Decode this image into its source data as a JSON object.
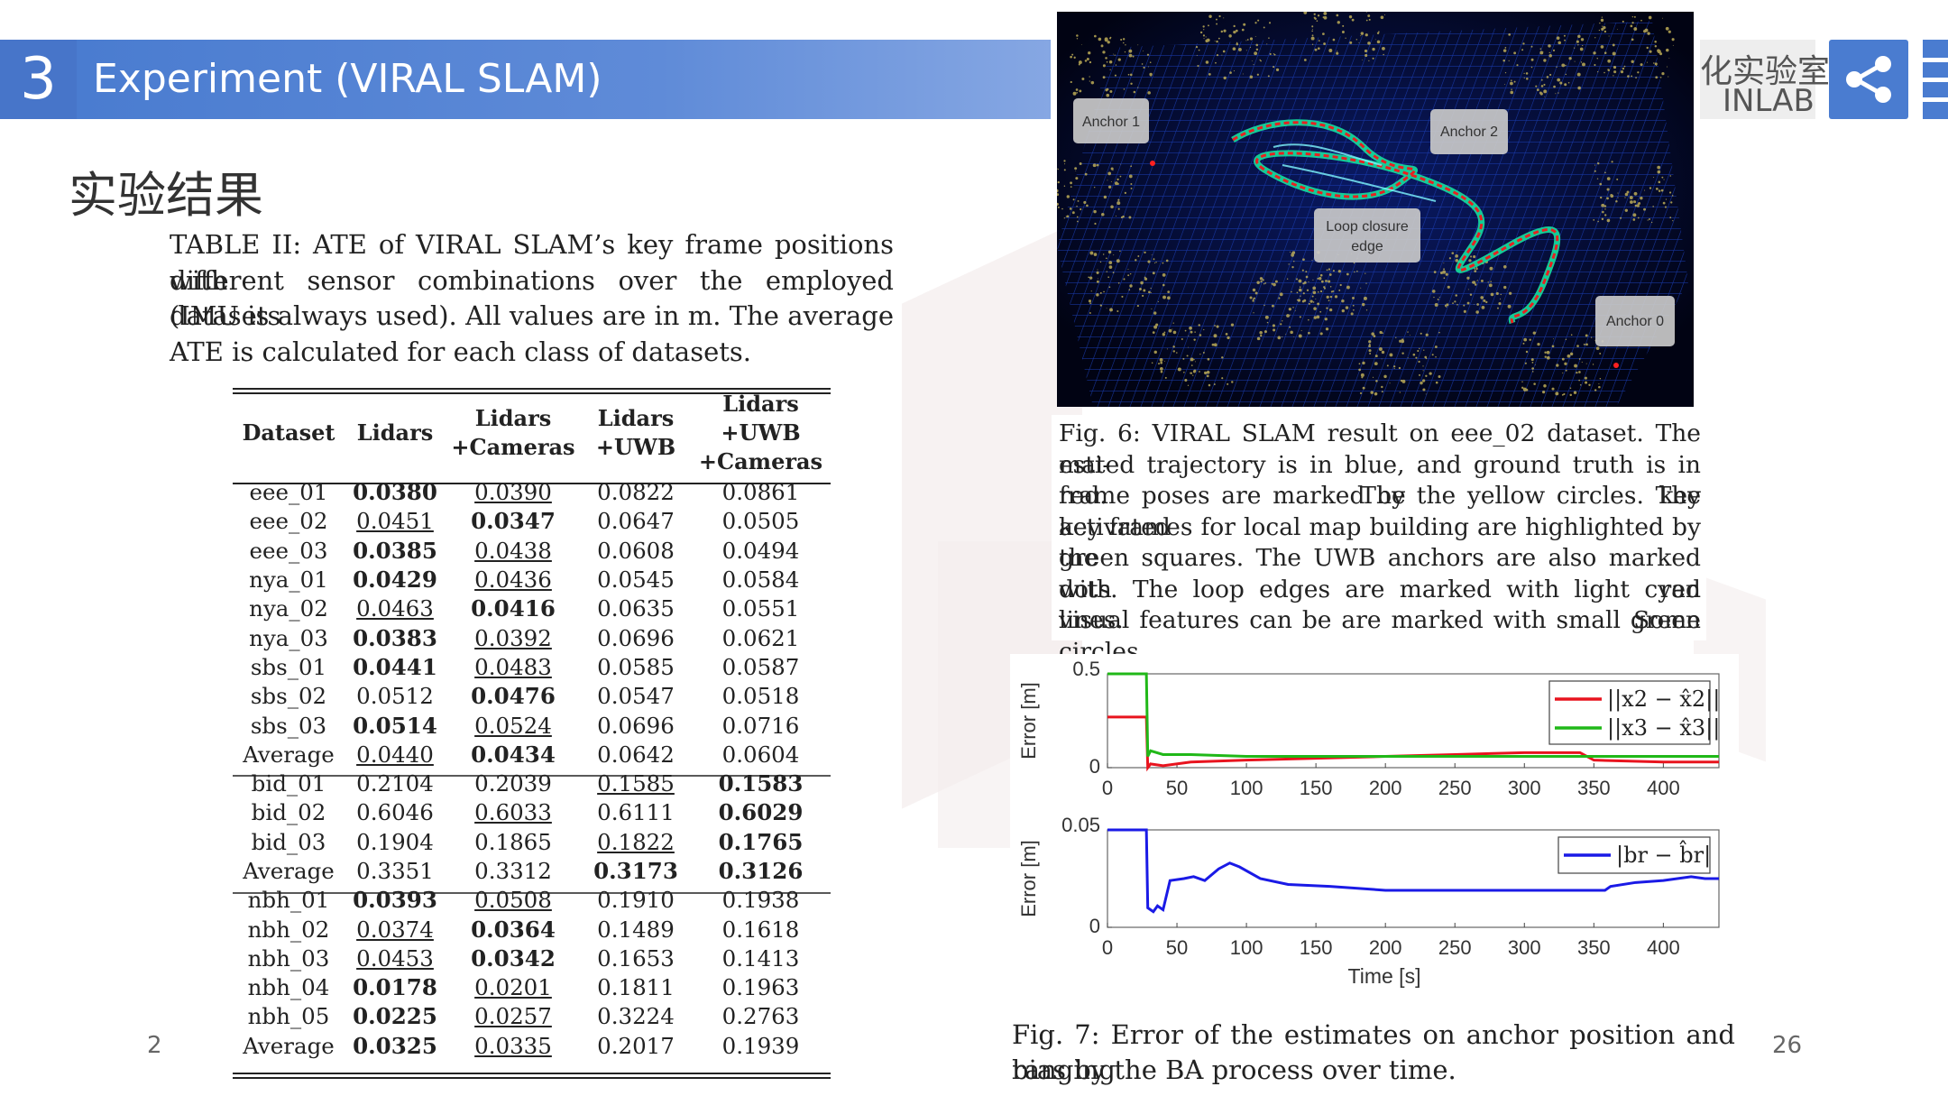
{
  "header": {
    "section_number": "3",
    "title": "Experiment (VIRAL SLAM)",
    "lab_name_cn": "化实验室",
    "lab_name_en": "INLAB",
    "share_icon": "share-icon"
  },
  "subtitle": "实验结果",
  "table_caption_lines": [
    "TABLE II: ATE of VIRAL SLAM’s key frame positions with",
    "different sensor combinations over the employed datasets",
    "(IMU is always used). All values are in m. The average",
    "ATE is calculated for each class of datasets."
  ],
  "table": {
    "headers": [
      "Dataset",
      "Lidars",
      "Lidars +Cameras",
      "Lidars +UWB",
      "Lidars +UWB +Cameras"
    ],
    "rows": [
      {
        "cells": [
          "eee_01",
          "0.0380",
          "0.0390",
          "0.0822",
          "0.0861"
        ],
        "bold": [
          1
        ],
        "underline": [
          2
        ]
      },
      {
        "cells": [
          "eee_02",
          "0.0451",
          "0.0347",
          "0.0647",
          "0.0505"
        ],
        "bold": [
          2
        ],
        "underline": [
          1
        ]
      },
      {
        "cells": [
          "eee_03",
          "0.0385",
          "0.0438",
          "0.0608",
          "0.0494"
        ],
        "bold": [
          1
        ],
        "underline": [
          2
        ]
      },
      {
        "cells": [
          "nya_01",
          "0.0429",
          "0.0436",
          "0.0545",
          "0.0584"
        ],
        "bold": [
          1
        ],
        "underline": [
          2
        ]
      },
      {
        "cells": [
          "nya_02",
          "0.0463",
          "0.0416",
          "0.0635",
          "0.0551"
        ],
        "bold": [
          2
        ],
        "underline": [
          1
        ]
      },
      {
        "cells": [
          "nya_03",
          "0.0383",
          "0.0392",
          "0.0696",
          "0.0621"
        ],
        "bold": [
          1
        ],
        "underline": [
          2
        ]
      },
      {
        "cells": [
          "sbs_01",
          "0.0441",
          "0.0483",
          "0.0585",
          "0.0587"
        ],
        "bold": [
          1
        ],
        "underline": [
          2
        ]
      },
      {
        "cells": [
          "sbs_02",
          "0.0512",
          "0.0476",
          "0.0547",
          "0.0518"
        ],
        "bold": [
          2
        ],
        "underline": []
      },
      {
        "cells": [
          "sbs_03",
          "0.0514",
          "0.0524",
          "0.0696",
          "0.0716"
        ],
        "bold": [
          1
        ],
        "underline": [
          2
        ]
      },
      {
        "cells": [
          "Average",
          "0.0440",
          "0.0434",
          "0.0642",
          "0.0604"
        ],
        "bold": [
          2
        ],
        "underline": [
          1
        ],
        "group_end": true
      },
      {
        "cells": [
          "bid_01",
          "0.2104",
          "0.2039",
          "0.1585",
          "0.1583"
        ],
        "bold": [
          4
        ],
        "underline": [
          3
        ]
      },
      {
        "cells": [
          "bid_02",
          "0.6046",
          "0.6033",
          "0.6111",
          "0.6029"
        ],
        "bold": [
          4
        ],
        "underline": [
          2
        ]
      },
      {
        "cells": [
          "bid_03",
          "0.1904",
          "0.1865",
          "0.1822",
          "0.1765"
        ],
        "bold": [
          4
        ],
        "underline": [
          3
        ]
      },
      {
        "cells": [
          "Average",
          "0.3351",
          "0.3312",
          "0.3173",
          "0.3126"
        ],
        "bold": [
          3,
          4
        ],
        "underline": [],
        "group_end": true
      },
      {
        "cells": [
          "nbh_01",
          "0.0393",
          "0.0508",
          "0.1910",
          "0.1938"
        ],
        "bold": [
          1
        ],
        "underline": [
          2
        ]
      },
      {
        "cells": [
          "nbh_02",
          "0.0374",
          "0.0364",
          "0.1489",
          "0.1618"
        ],
        "bold": [
          2
        ],
        "underline": [
          1
        ]
      },
      {
        "cells": [
          "nbh_03",
          "0.0453",
          "0.0342",
          "0.1653",
          "0.1413"
        ],
        "bold": [
          2
        ],
        "underline": [
          1
        ]
      },
      {
        "cells": [
          "nbh_04",
          "0.0178",
          "0.0201",
          "0.1811",
          "0.1963"
        ],
        "bold": [
          1
        ],
        "underline": [
          2
        ]
      },
      {
        "cells": [
          "nbh_05",
          "0.0225",
          "0.0257",
          "0.3224",
          "0.2763"
        ],
        "bold": [
          1
        ],
        "underline": [
          2
        ]
      },
      {
        "cells": [
          "Average",
          "0.0325",
          "0.0335",
          "0.2017",
          "0.1939"
        ],
        "bold": [
          1
        ],
        "underline": [
          2
        ]
      }
    ]
  },
  "fig6": {
    "labels": [
      "Anchor 1",
      "Anchor 2",
      "Loop closure edge",
      "Anchor 0"
    ],
    "caption_lines": [
      "Fig. 6: VIRAL SLAM result on eee_02 dataset. The esti-",
      "mated trajectory is in blue, and ground truth is in red. The key",
      "frame poses are marked by the yellow circles. The activated",
      "key frames for local map building are highlighted by the",
      "green squares. The UWB anchors are also marked with red",
      "dots. The loop edges are marked with light cyan lines. Some",
      "visual features can be are marked with small green circles."
    ]
  },
  "fig7": {
    "caption_lines": [
      "Fig. 7: Error of the estimates on anchor position and ranging",
      "bias by the BA process over time."
    ]
  },
  "chart_data": [
    {
      "type": "line",
      "ylabel": "Error [m]",
      "xlabel": "",
      "xlim": [
        0,
        440
      ],
      "ylim": [
        0,
        0.5
      ],
      "x_ticks": [
        "0",
        "50",
        "100",
        "150",
        "200",
        "250",
        "300",
        "350",
        "400"
      ],
      "y_ticks": [
        "0",
        "0.5"
      ],
      "legend_position": "top-right",
      "series": [
        {
          "name": "||x2 − x̂2||",
          "color": "#e8141e",
          "x": [
            0,
            28,
            29,
            31,
            40,
            60,
            100,
            150,
            200,
            250,
            300,
            340,
            350,
            400,
            440
          ],
          "y": [
            0.27,
            0.27,
            0.0,
            0.02,
            0.01,
            0.03,
            0.04,
            0.05,
            0.06,
            0.07,
            0.08,
            0.08,
            0.04,
            0.03,
            0.03
          ]
        },
        {
          "name": "||x3 − x̂3||",
          "color": "#20b818",
          "x": [
            0,
            28,
            29,
            31,
            40,
            60,
            100,
            150,
            200,
            250,
            300,
            340,
            350,
            400,
            440
          ],
          "y": [
            0.5,
            0.5,
            0.06,
            0.09,
            0.07,
            0.07,
            0.06,
            0.06,
            0.06,
            0.06,
            0.06,
            0.06,
            0.06,
            0.06,
            0.06
          ]
        }
      ]
    },
    {
      "type": "line",
      "ylabel": "Error [m]",
      "xlabel": "Time [s]",
      "xlim": [
        0,
        440
      ],
      "ylim": [
        0,
        0.05
      ],
      "x_ticks": [
        "0",
        "50",
        "100",
        "150",
        "200",
        "250",
        "300",
        "350",
        "400"
      ],
      "y_ticks": [
        "0",
        "0.05"
      ],
      "legend_position": "top-right",
      "series": [
        {
          "name": "|br − b̂r|",
          "color": "#1a1ae6",
          "x": [
            0,
            28,
            29,
            33,
            36,
            40,
            45,
            55,
            62,
            70,
            80,
            88,
            95,
            110,
            130,
            160,
            200,
            250,
            300,
            330,
            358,
            362,
            380,
            400,
            420,
            430,
            440
          ],
          "y": [
            0.05,
            0.05,
            0.01,
            0.008,
            0.011,
            0.009,
            0.024,
            0.025,
            0.026,
            0.024,
            0.03,
            0.033,
            0.031,
            0.025,
            0.022,
            0.021,
            0.019,
            0.019,
            0.019,
            0.019,
            0.019,
            0.021,
            0.023,
            0.024,
            0.026,
            0.025,
            0.025
          ]
        }
      ]
    }
  ],
  "page": {
    "left_fragment": "2",
    "number": "26"
  }
}
